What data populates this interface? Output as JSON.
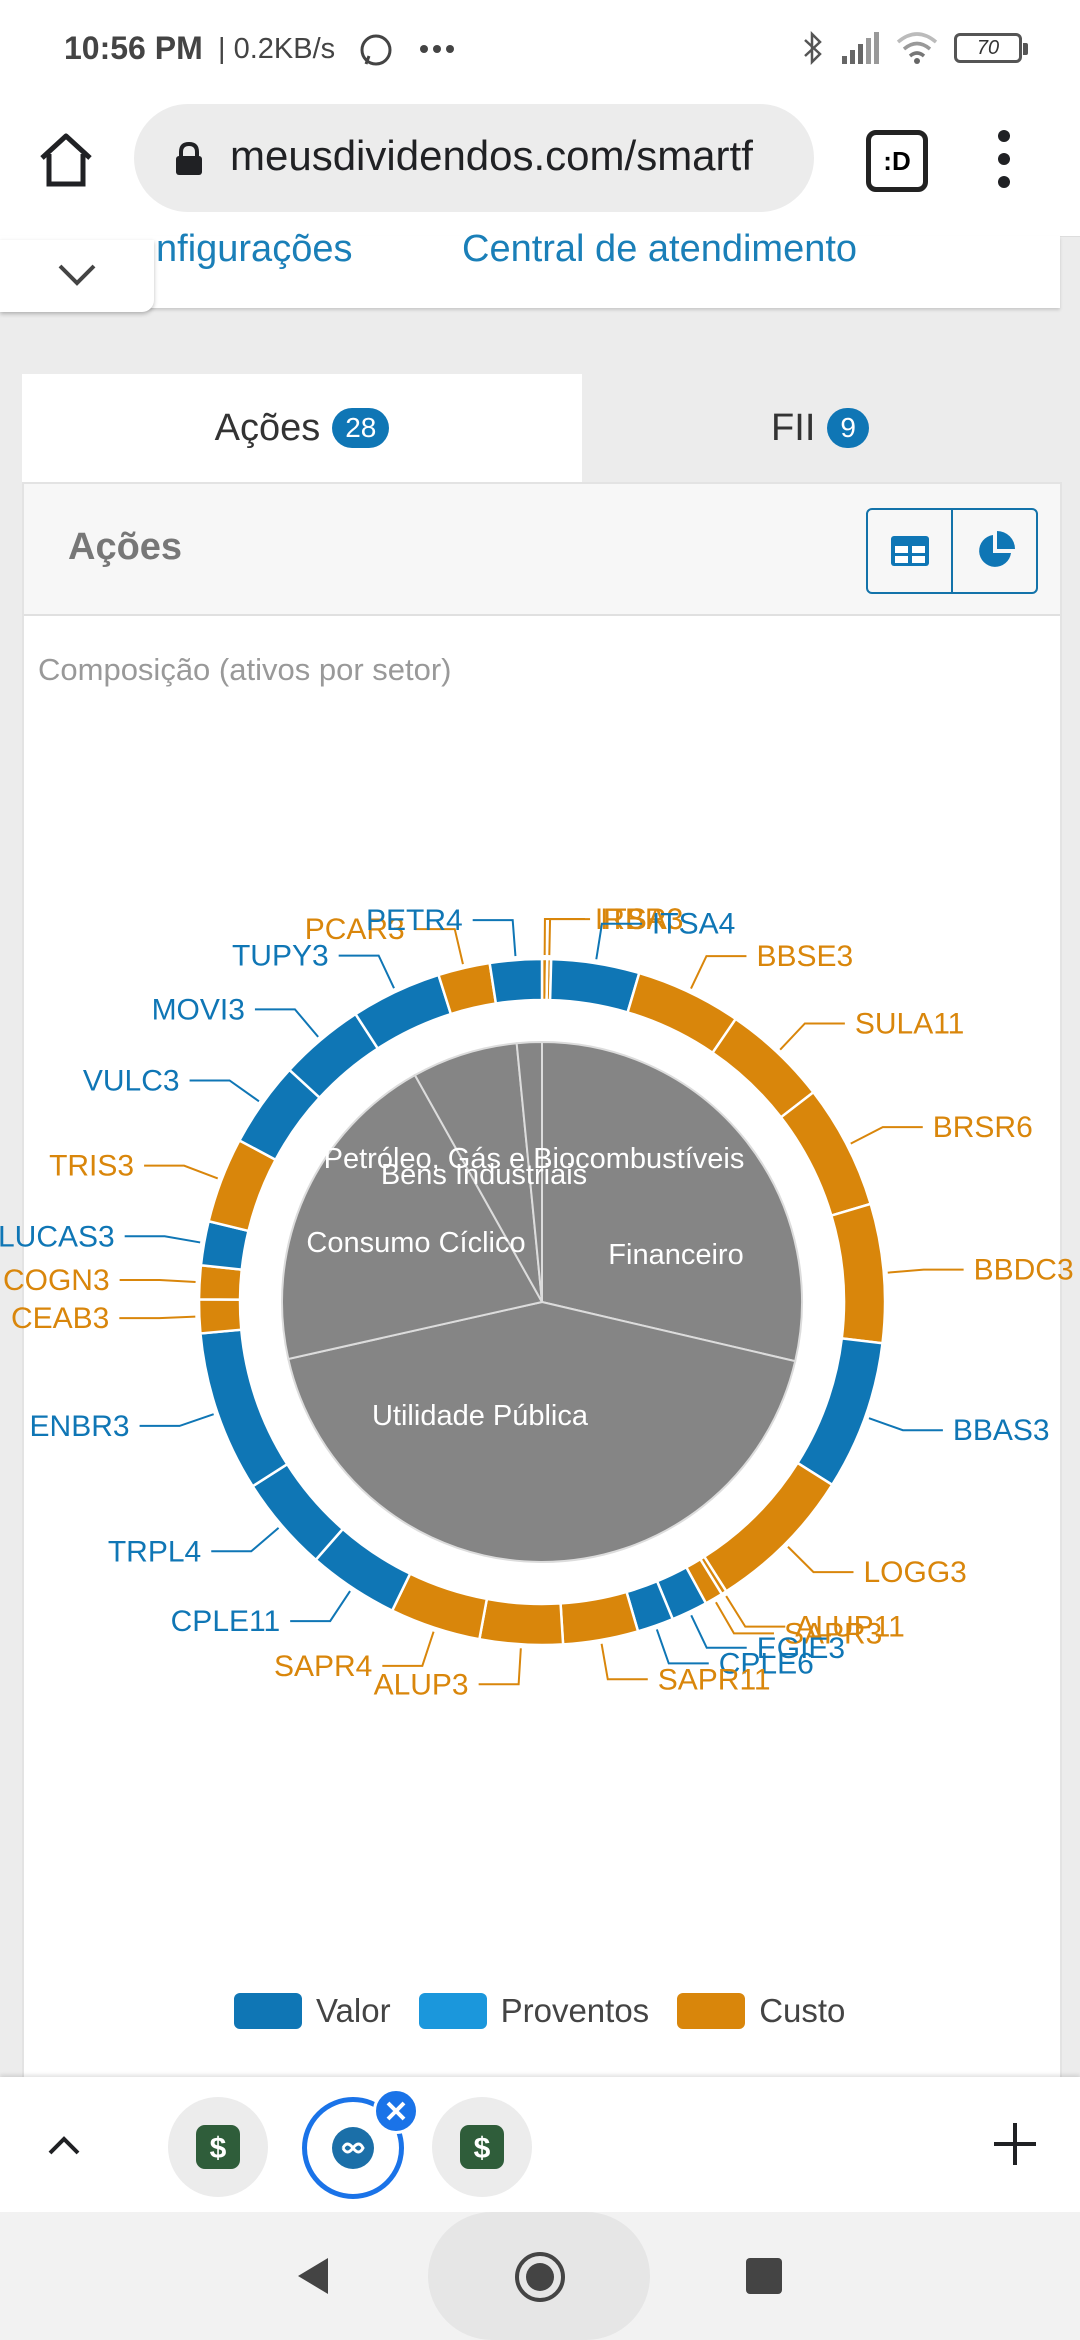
{
  "status": {
    "time": "10:56 PM",
    "speed": "| 0.2KB/s",
    "battery": "70"
  },
  "browser": {
    "url": "meusdividendos.com/smartf",
    "tab_count": ":D"
  },
  "nav": {
    "link1": "nfigurações",
    "link2": "Central de atendimento"
  },
  "tabs": [
    {
      "label": "Ações",
      "count": "28"
    },
    {
      "label": "FII",
      "count": "9"
    }
  ],
  "panel": {
    "title": "Ações",
    "caption": "Composição (ativos por setor)"
  },
  "colors": {
    "valor": "#0f76b5",
    "proventos": "#1b97dc",
    "custo": "#d9860b",
    "pie_fill": "#858585"
  },
  "legend": [
    "Valor",
    "Proventos",
    "Custo"
  ],
  "chart_data": {
    "type": "pie",
    "title": "Composição (ativos por setor)",
    "inner": {
      "labels": [
        "Financeiro",
        "Utilidade Pública",
        "Consumo Cíclico",
        "Bens Industriais",
        "Petróleo, Gás e Biocombustíveis"
      ],
      "values": [
        103.3,
        154.4,
        73.5,
        23.7,
        5.6
      ]
    },
    "outer": [
      {
        "name": "IRBR3",
        "value": 0.96,
        "group": "Custo"
      },
      {
        "name": "ITSA3",
        "value": 0.72,
        "group": "Custo"
      },
      {
        "name": "ITSA4",
        "value": 16.33,
        "group": "Valor"
      },
      {
        "name": "BBSE3",
        "value": 19.59,
        "group": "Custo"
      },
      {
        "name": "SULA11",
        "value": 19.59,
        "group": "Custo"
      },
      {
        "name": "BRSR6",
        "value": 23.05,
        "group": "Custo"
      },
      {
        "name": "BBDC3",
        "value": 25.74,
        "group": "Custo"
      },
      {
        "name": "BBAS3",
        "value": 27.66,
        "group": "Valor"
      },
      {
        "name": "LOGG3",
        "value": 27.66,
        "group": "Custo"
      },
      {
        "name": "ALUP11",
        "value": 0.96,
        "group": "Custo"
      },
      {
        "name": "SAPR3",
        "value": 3.36,
        "group": "Custo"
      },
      {
        "name": "EGIE3",
        "value": 6.72,
        "group": "Valor"
      },
      {
        "name": "CPLE6",
        "value": 6.72,
        "group": "Valor"
      },
      {
        "name": "SAPR11",
        "value": 13.92,
        "group": "Custo"
      },
      {
        "name": "ALUP3",
        "value": 15.36,
        "group": "Custo"
      },
      {
        "name": "SAPR4",
        "value": 16.81,
        "group": "Custo"
      },
      {
        "name": "CPLE11",
        "value": 16.81,
        "group": "Valor"
      },
      {
        "name": "TRPL4",
        "value": 17.77,
        "group": "Valor"
      },
      {
        "name": "ENBR3",
        "value": 29.77,
        "group": "Valor"
      },
      {
        "name": "CEAB3",
        "value": 6.24,
        "group": "Custo"
      },
      {
        "name": "COGN3",
        "value": 6.24,
        "group": "Custo"
      },
      {
        "name": "LUCAS3",
        "value": 8.16,
        "group": "Valor"
      },
      {
        "name": "TRIS3",
        "value": 15.84,
        "group": "Custo"
      },
      {
        "name": "VULC3",
        "value": 15.84,
        "group": "Valor"
      },
      {
        "name": "MOVI3",
        "value": 15.84,
        "group": "Valor"
      },
      {
        "name": "TUPY3",
        "value": 16.81,
        "group": "Valor"
      },
      {
        "name": "PCAR3",
        "value": 9.6,
        "group": "Custo"
      },
      {
        "name": "PETR4",
        "value": 9.6,
        "group": "Valor"
      }
    ]
  }
}
